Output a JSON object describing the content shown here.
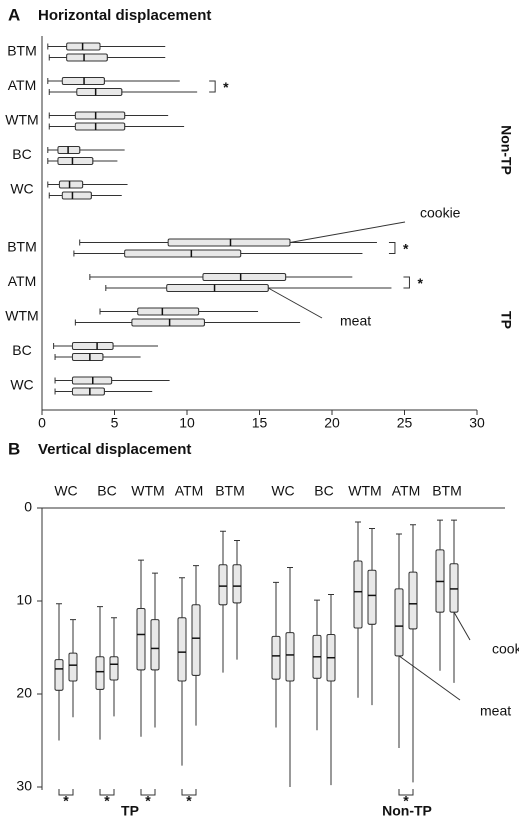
{
  "chart_data": [
    {
      "type": "boxplot",
      "orientation": "horizontal",
      "panel_label": "A",
      "title": "Horizontal displacement",
      "xlim": [
        0,
        30
      ],
      "xticks": [
        0,
        5,
        10,
        15,
        20,
        25,
        30
      ],
      "color": "#e8e8e8",
      "sig_label": "*",
      "series": [
        {
          "name": "cookie"
        },
        {
          "name": "meat"
        }
      ],
      "groups": [
        {
          "name": "Non-TP",
          "categories": [
            "BTM",
            "ATM",
            "WTM",
            "BC",
            "WC"
          ],
          "significant": [
            false,
            true,
            false,
            false,
            false
          ],
          "values": [
            [
              [
                0.4,
                1.7,
                2.8,
                4.0,
                8.5
              ],
              [
                0.4,
                1.4,
                2.9,
                4.3,
                9.5
              ],
              [
                0.5,
                2.3,
                3.7,
                5.7,
                8.7
              ],
              [
                0.4,
                1.1,
                1.8,
                2.6,
                5.7
              ],
              [
                0.4,
                1.2,
                1.9,
                2.8,
                5.9
              ]
            ],
            [
              [
                0.5,
                1.7,
                2.9,
                4.5,
                8.5
              ],
              [
                0.5,
                2.4,
                3.7,
                5.5,
                10.7
              ],
              [
                0.5,
                2.3,
                3.7,
                5.7,
                9.8
              ],
              [
                0.4,
                1.1,
                2.1,
                3.5,
                5.2
              ],
              [
                0.5,
                1.4,
                2.1,
                3.4,
                5.5
              ]
            ]
          ]
        },
        {
          "name": "TP",
          "categories": [
            "BTM",
            "ATM",
            "WTM",
            "BC",
            "WC"
          ],
          "significant": [
            true,
            true,
            false,
            false,
            false
          ],
          "values": [
            [
              [
                2.6,
                8.7,
                13.0,
                17.1,
                23.1
              ],
              [
                3.3,
                11.1,
                13.7,
                16.8,
                21.4
              ],
              [
                4.0,
                6.6,
                8.3,
                10.8,
                14.9
              ],
              [
                0.8,
                2.1,
                3.8,
                4.9,
                8.0
              ],
              [
                0.9,
                2.1,
                3.5,
                4.8,
                8.8
              ]
            ],
            [
              [
                2.2,
                5.7,
                10.3,
                13.7,
                22.1
              ],
              [
                4.4,
                8.6,
                11.9,
                15.6,
                24.1
              ],
              [
                2.3,
                6.2,
                8.8,
                11.2,
                17.8
              ],
              [
                0.9,
                2.1,
                3.3,
                4.2,
                6.8
              ],
              [
                0.9,
                2.1,
                3.3,
                4.3,
                7.6
              ]
            ]
          ]
        }
      ]
    },
    {
      "type": "boxplot",
      "orientation": "vertical",
      "panel_label": "B",
      "title": "Vertical displacement",
      "ylim": [
        0,
        30
      ],
      "yticks": [
        0,
        10,
        20,
        30
      ],
      "color": "#e8e8e8",
      "sig_label": "*",
      "series": [
        {
          "name": "meat"
        },
        {
          "name": "cookie"
        }
      ],
      "groups": [
        {
          "name": "TP",
          "categories": [
            "WC",
            "BC",
            "WTM",
            "ATM",
            "BTM"
          ],
          "significant": [
            true,
            true,
            true,
            true,
            false
          ],
          "values": [
            [
              [
                10.3,
                16.3,
                17.3,
                19.6,
                25.0
              ],
              [
                10.6,
                16.0,
                17.6,
                19.5,
                24.9
              ],
              [
                5.6,
                10.8,
                13.6,
                17.4,
                24.6
              ],
              [
                7.5,
                11.8,
                15.5,
                18.6,
                27.7
              ],
              [
                2.5,
                6.1,
                8.4,
                10.4,
                17.7
              ]
            ],
            [
              [
                12.0,
                15.6,
                16.9,
                18.6,
                22.5
              ],
              [
                11.8,
                16.0,
                16.8,
                18.5,
                22.4
              ],
              [
                7.0,
                12.0,
                15.1,
                17.4,
                23.6
              ],
              [
                6.2,
                10.4,
                14.0,
                18.0,
                23.4
              ],
              [
                3.5,
                6.1,
                8.4,
                10.2,
                16.3
              ]
            ]
          ]
        },
        {
          "name": "Non-TP",
          "categories": [
            "WC",
            "BC",
            "WTM",
            "ATM",
            "BTM"
          ],
          "significant": [
            false,
            false,
            false,
            true,
            false
          ],
          "values": [
            [
              [
                8.0,
                13.8,
                15.9,
                18.4,
                23.6
              ],
              [
                9.9,
                13.7,
                16.0,
                18.3,
                23.9
              ],
              [
                1.5,
                5.7,
                9.0,
                12.9,
                20.4
              ],
              [
                2.8,
                8.7,
                12.7,
                15.9,
                25.8
              ],
              [
                1.3,
                4.5,
                7.9,
                11.2,
                17.5
              ]
            ],
            [
              [
                6.4,
                13.4,
                15.8,
                18.6,
                30.0
              ],
              [
                9.3,
                13.6,
                16.1,
                18.6,
                29.8
              ],
              [
                2.2,
                6.7,
                9.4,
                12.5,
                21.2
              ],
              [
                1.8,
                6.9,
                10.3,
                13.0,
                29.5
              ],
              [
                1.3,
                6.0,
                8.7,
                11.2,
                18.8
              ]
            ]
          ]
        }
      ]
    }
  ]
}
